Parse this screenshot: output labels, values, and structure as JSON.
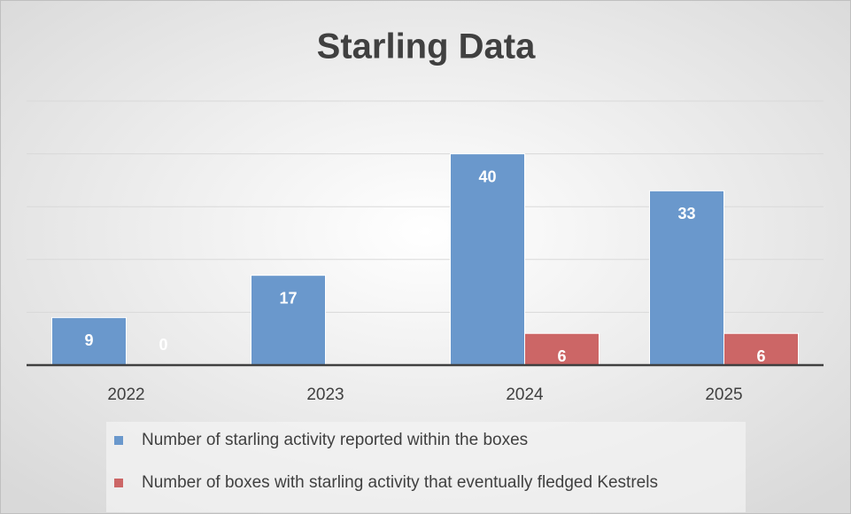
{
  "chart_data": {
    "type": "bar",
    "title": "Starling Data",
    "categories": [
      "2022",
      "2023",
      "2024",
      "2025"
    ],
    "series": [
      {
        "name": "Number  of starling activity reported within the boxes",
        "color": "#6a98cc",
        "values": [
          9,
          17,
          40,
          33
        ]
      },
      {
        "name": "Number of boxes with starling activity that eventually fledged Kestrels",
        "color": "#cc6666",
        "values": [
          0,
          null,
          6,
          6
        ]
      }
    ],
    "ylim": [
      0,
      50
    ],
    "yticks": [
      0,
      10,
      20,
      30,
      40,
      50
    ],
    "grid": true,
    "legend": "bottom"
  }
}
